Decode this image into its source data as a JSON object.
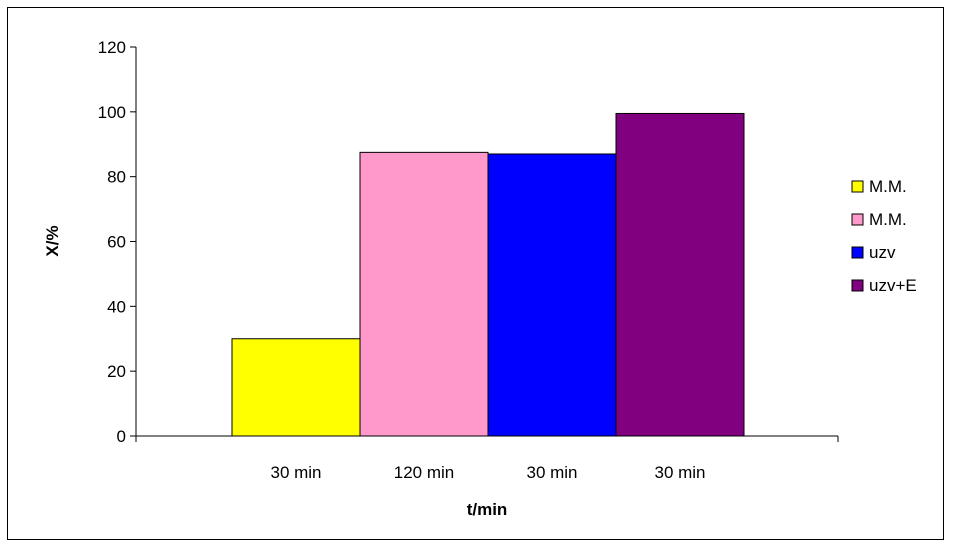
{
  "chart_data": {
    "type": "bar",
    "title": "",
    "xlabel": "t/min",
    "ylabel": "X/%",
    "ylim": [
      0,
      120
    ],
    "yticks": [
      0,
      20,
      40,
      60,
      80,
      100,
      120
    ],
    "grid": false,
    "legend_position": "right",
    "categories": [
      "30 min",
      "120 min",
      "30 min",
      "30 min"
    ],
    "series": [
      {
        "name": "M.M.",
        "values": [
          30,
          null,
          null,
          null
        ],
        "color": "#FFFF00"
      },
      {
        "name": "M.M.",
        "values": [
          null,
          87.5,
          null,
          null
        ],
        "color": "#FF99CC"
      },
      {
        "name": "uzv",
        "values": [
          null,
          null,
          87,
          null
        ],
        "color": "#0000FF"
      },
      {
        "name": "uzv+E",
        "values": [
          null,
          null,
          null,
          99.5
        ],
        "color": "#800080"
      }
    ]
  }
}
